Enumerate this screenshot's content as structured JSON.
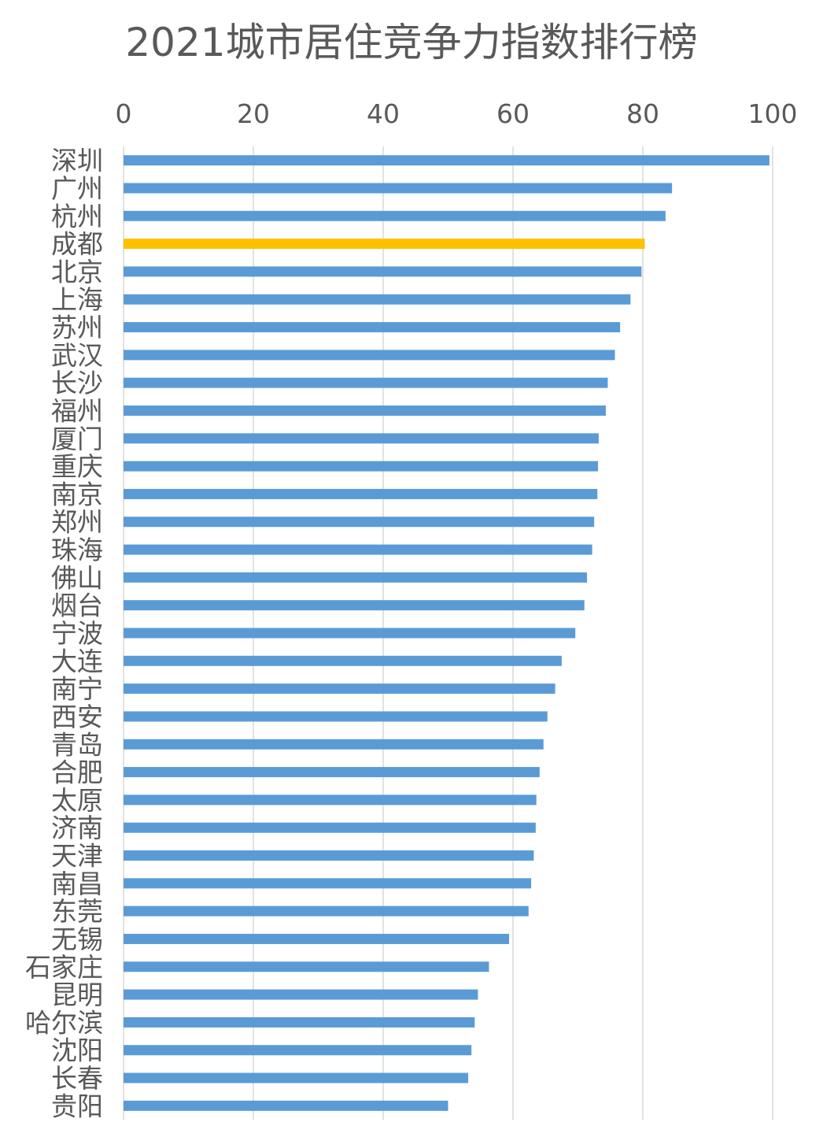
{
  "chart_data": {
    "type": "bar",
    "orientation": "horizontal",
    "title": "2021城市居住竞争力指数排行榜",
    "xlim": [
      0,
      100
    ],
    "x_ticks": [
      "0",
      "20",
      "40",
      "60",
      "80",
      "100"
    ],
    "x_axis_position": "top",
    "grid": true,
    "legend": "none",
    "colors": {
      "default": "#5B9BD5",
      "highlight": "#FFC000",
      "grid": "#D9D9D9",
      "text": "#595959"
    },
    "highlight_category": "成都",
    "categories": [
      "深圳",
      "广州",
      "杭州",
      "成都",
      "北京",
      "上海",
      "苏州",
      "武汉",
      "长沙",
      "福州",
      "厦门",
      "重庆",
      "南京",
      "郑州",
      "珠海",
      "佛山",
      "烟台",
      "宁波",
      "大连",
      "南宁",
      "西安",
      "青岛",
      "合肥",
      "太原",
      "济南",
      "天津",
      "南昌",
      "东莞",
      "无锡",
      "石家庄",
      "昆明",
      "哈尔滨",
      "沈阳",
      "长春",
      "贵阳"
    ],
    "values": [
      99.5,
      84.5,
      83.5,
      80.3,
      79.8,
      78.1,
      76.5,
      75.7,
      74.6,
      74.3,
      73.2,
      73.1,
      73.0,
      72.5,
      72.2,
      71.4,
      71.0,
      69.6,
      67.5,
      66.5,
      65.3,
      64.7,
      64.1,
      63.6,
      63.5,
      63.2,
      62.8,
      62.4,
      59.4,
      56.3,
      54.6,
      54.1,
      53.6,
      53.1,
      50.0
    ]
  }
}
